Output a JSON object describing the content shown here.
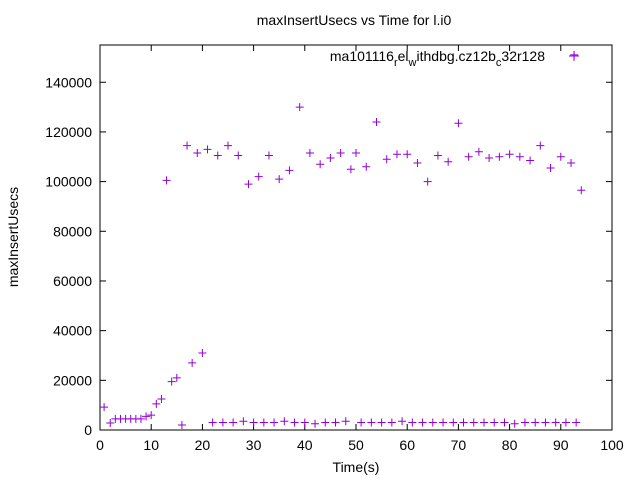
{
  "chart_data": {
    "type": "scatter",
    "title": "maxInsertUsecs vs Time for l.i0",
    "xlabel": "Time(s)",
    "ylabel": "maxInsertUsecs",
    "xlim": [
      0,
      100
    ],
    "ylim": [
      0,
      155000
    ],
    "x_ticks": [
      0,
      10,
      20,
      30,
      40,
      50,
      60,
      70,
      80,
      90,
      100
    ],
    "y_ticks": [
      0,
      20000,
      40000,
      60000,
      80000,
      100000,
      120000,
      140000
    ],
    "grid": false,
    "legend_position": "top-right",
    "series": [
      {
        "name": "ma101116_rel_withdbg.cz12b_c32r128",
        "legend_parts": [
          {
            "text": "ma101116",
            "sub": false
          },
          {
            "text": "r",
            "sub": true
          },
          {
            "text": "el",
            "sub": false
          },
          {
            "text": "w",
            "sub": true
          },
          {
            "text": "ithdbg.cz12b",
            "sub": false
          },
          {
            "text": "c",
            "sub": true
          },
          {
            "text": "32r128",
            "sub": false
          }
        ],
        "color": "#9400d3",
        "marker": "plus",
        "points": [
          [
            0.8,
            9200
          ],
          [
            2,
            2800
          ],
          [
            3,
            4500
          ],
          [
            4,
            4500
          ],
          [
            5,
            4500
          ],
          [
            6,
            4500
          ],
          [
            7,
            4500
          ],
          [
            8,
            4500
          ],
          [
            9,
            5500
          ],
          [
            10,
            6000
          ],
          [
            11,
            10500
          ],
          [
            12,
            12500
          ],
          [
            13,
            100500
          ],
          [
            14,
            19500
          ],
          [
            15,
            21000
          ],
          [
            16,
            2000
          ],
          [
            17,
            114500
          ],
          [
            18,
            27000
          ],
          [
            19,
            111500
          ],
          [
            20,
            31000
          ],
          [
            21,
            113000
          ],
          [
            22,
            3000
          ],
          [
            23,
            110500
          ],
          [
            24,
            3000
          ],
          [
            25,
            114500
          ],
          [
            26,
            3000
          ],
          [
            27,
            110500
          ],
          [
            28,
            3500
          ],
          [
            29,
            99000
          ],
          [
            30,
            3000
          ],
          [
            31,
            102000
          ],
          [
            32,
            3000
          ],
          [
            33,
            110500
          ],
          [
            34,
            3000
          ],
          [
            35,
            101000
          ],
          [
            36,
            3500
          ],
          [
            37,
            104500
          ],
          [
            38,
            3000
          ],
          [
            39,
            130000
          ],
          [
            40,
            3000
          ],
          [
            41,
            111500
          ],
          [
            42,
            2500
          ],
          [
            43,
            107000
          ],
          [
            44,
            3000
          ],
          [
            45,
            109500
          ],
          [
            46,
            3000
          ],
          [
            47,
            111500
          ],
          [
            48,
            3500
          ],
          [
            49,
            105000
          ],
          [
            50,
            111500
          ],
          [
            51,
            3000
          ],
          [
            52,
            106000
          ],
          [
            53,
            3000
          ],
          [
            54,
            124000
          ],
          [
            55,
            3000
          ],
          [
            56,
            109000
          ],
          [
            57,
            3000
          ],
          [
            58,
            111000
          ],
          [
            59,
            3500
          ],
          [
            60,
            111000
          ],
          [
            61,
            3000
          ],
          [
            62,
            107500
          ],
          [
            63,
            3000
          ],
          [
            64,
            100000
          ],
          [
            65,
            3000
          ],
          [
            66,
            110500
          ],
          [
            67,
            3000
          ],
          [
            68,
            108000
          ],
          [
            69,
            3000
          ],
          [
            70,
            123500
          ],
          [
            71,
            3000
          ],
          [
            72,
            110000
          ],
          [
            73,
            3000
          ],
          [
            74,
            112000
          ],
          [
            75,
            3000
          ],
          [
            76,
            109500
          ],
          [
            77,
            3000
          ],
          [
            78,
            110000
          ],
          [
            79,
            3000
          ],
          [
            80,
            111000
          ],
          [
            81,
            2500
          ],
          [
            82,
            110000
          ],
          [
            83,
            3000
          ],
          [
            84,
            108500
          ],
          [
            85,
            3000
          ],
          [
            86,
            114500
          ],
          [
            87,
            3000
          ],
          [
            88,
            105500
          ],
          [
            89,
            3000
          ],
          [
            90,
            110000
          ],
          [
            91,
            3000
          ],
          [
            92,
            107500
          ],
          [
            92.6,
            151000
          ],
          [
            93,
            3000
          ],
          [
            94,
            96500
          ]
        ]
      }
    ]
  }
}
